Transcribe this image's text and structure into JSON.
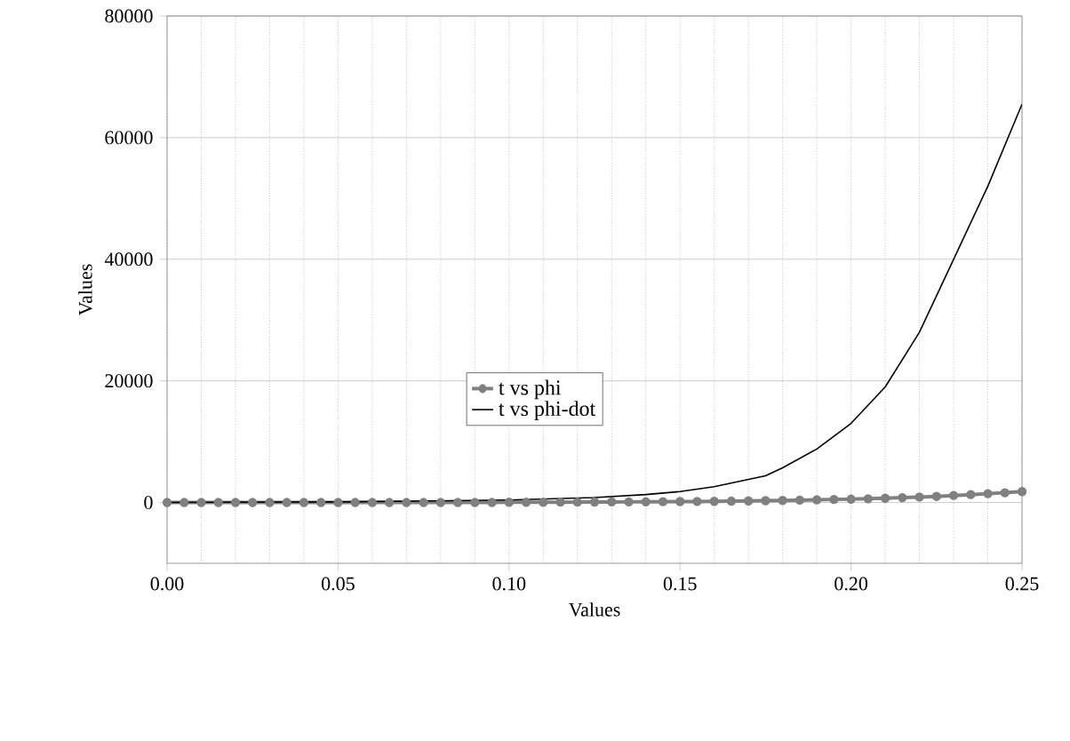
{
  "chart_data": {
    "type": "line",
    "xlabel": "Values",
    "ylabel": "Values",
    "xlim": [
      0,
      0.25
    ],
    "ylim": [
      -10000,
      80000
    ],
    "xticks": [
      {
        "value": 0,
        "label": "0.00"
      },
      {
        "value": 0.05,
        "label": "0.05"
      },
      {
        "value": 0.1,
        "label": "0.10"
      },
      {
        "value": 0.15,
        "label": "0.15"
      },
      {
        "value": 0.2,
        "label": "0.20"
      },
      {
        "value": 0.25,
        "label": "0.25"
      }
    ],
    "yticks": [
      0,
      20000,
      40000,
      60000,
      80000
    ],
    "grid": true,
    "legend": "center",
    "series": [
      {
        "name": "t vs phi",
        "color": "#808080",
        "marker": "circle",
        "x": [
          0,
          0.005,
          0.01,
          0.015,
          0.02,
          0.025,
          0.03,
          0.035,
          0.04,
          0.045,
          0.05,
          0.055,
          0.06,
          0.065,
          0.07,
          0.075,
          0.08,
          0.085,
          0.09,
          0.095,
          0.1,
          0.105,
          0.11,
          0.115,
          0.12,
          0.125,
          0.13,
          0.135,
          0.14,
          0.145,
          0.15,
          0.155,
          0.16,
          0.165,
          0.17,
          0.175,
          0.18,
          0.185,
          0.19,
          0.195,
          0.2,
          0.205,
          0.21,
          0.215,
          0.22,
          0.225,
          0.23,
          0.235,
          0.24,
          0.245,
          0.25
        ],
        "values": [
          0,
          0,
          0,
          0,
          0,
          0,
          0,
          0,
          0,
          0,
          0,
          0,
          0,
          0,
          0,
          0,
          0,
          0,
          0,
          0,
          50,
          50,
          50,
          60,
          70,
          80,
          90,
          100,
          110,
          130,
          150,
          170,
          190,
          220,
          260,
          300,
          340,
          390,
          440,
          500,
          550,
          620,
          700,
          800,
          900,
          1000,
          1150,
          1300,
          1450,
          1600,
          1800
        ]
      },
      {
        "name": "t vs phi-dot",
        "color": "#000000",
        "marker": "none",
        "x": [
          0,
          0.05,
          0.1,
          0.125,
          0.14,
          0.15,
          0.16,
          0.175,
          0.18,
          0.19,
          0.2,
          0.21,
          0.22,
          0.23,
          0.24,
          0.25
        ],
        "values": [
          0,
          100,
          400,
          800,
          1300,
          1800,
          2600,
          4400,
          5700,
          8800,
          13000,
          19000,
          28000,
          40000,
          52000,
          65500
        ]
      }
    ]
  }
}
